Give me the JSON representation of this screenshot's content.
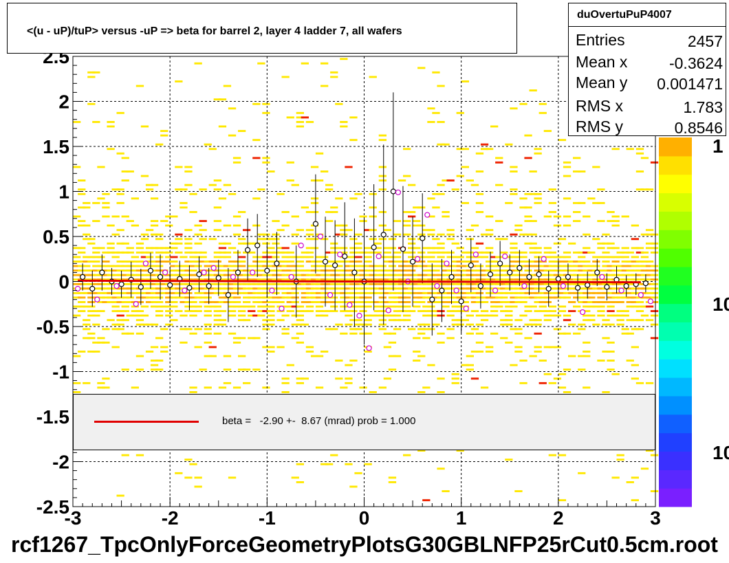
{
  "title": "<(u - uP)/tuP> versus  -uP => beta for barrel 2, layer 4 ladder 7, all wafers",
  "stats": {
    "name": "duOvertuPuP4007",
    "rows": [
      {
        "key": "Entries",
        "value": "2457"
      },
      {
        "key": "Mean x",
        "value": "-0.3624"
      },
      {
        "key": "Mean y",
        "value": "0.001471"
      },
      {
        "key": "RMS x",
        "value": "1.783"
      },
      {
        "key": "RMS y",
        "value": "0.8546"
      }
    ]
  },
  "legend": {
    "text": "beta =   -2.90 +-  8.67 (mrad) prob = 1.000",
    "line_color": "#e00000"
  },
  "footer": "rcf1267_TpcOnlyForceGeometryPlotsG30GBLNFP25rCut0.5cm.root",
  "palette_labels": [
    "1",
    "10",
    "10"
  ],
  "colors": {
    "hist_yellow": "#ffe800",
    "hist_orange": "#ffb000",
    "hist_red": "#ee2200",
    "fit_line": "#e00000",
    "profile_black": "#000000",
    "profile_magenta": "#cc00cc"
  },
  "chart_data": {
    "type": "scatter",
    "xlim": [
      -3,
      3
    ],
    "ylim": [
      -2.5,
      2.5
    ],
    "x_ticks": [
      "-3",
      "-2",
      "-1",
      "0",
      "1",
      "2",
      "3"
    ],
    "y_ticks": [
      "-2.5",
      "-2",
      "-1.5",
      "-1",
      "-0.5",
      "0",
      "0.5",
      "1",
      "1.5",
      "2",
      "2.5"
    ],
    "grid": true,
    "fit": {
      "slope": -0.0029,
      "intercept": 0.0
    },
    "profile_black": [
      {
        "x": -2.9,
        "y": 0.05,
        "e": 0.15
      },
      {
        "x": -2.8,
        "y": -0.08,
        "e": 0.2
      },
      {
        "x": -2.7,
        "y": 0.1,
        "e": 0.2
      },
      {
        "x": -2.6,
        "y": 0.0,
        "e": 0.15
      },
      {
        "x": -2.5,
        "y": -0.03,
        "e": 0.15
      },
      {
        "x": -2.4,
        "y": 0.02,
        "e": 0.2
      },
      {
        "x": -2.3,
        "y": -0.06,
        "e": 0.2
      },
      {
        "x": -2.2,
        "y": 0.12,
        "e": 0.2
      },
      {
        "x": -2.1,
        "y": 0.05,
        "e": 0.25
      },
      {
        "x": -2.0,
        "y": -0.04,
        "e": 0.2
      },
      {
        "x": -1.9,
        "y": 0.03,
        "e": 0.2
      },
      {
        "x": -1.8,
        "y": -0.07,
        "e": 0.25
      },
      {
        "x": -1.7,
        "y": 0.08,
        "e": 0.2
      },
      {
        "x": -1.6,
        "y": -0.05,
        "e": 0.2
      },
      {
        "x": -1.5,
        "y": 0.04,
        "e": 0.2
      },
      {
        "x": -1.4,
        "y": -0.15,
        "e": 0.3
      },
      {
        "x": -1.3,
        "y": 0.1,
        "e": 0.25
      },
      {
        "x": -1.2,
        "y": 0.35,
        "e": 0.35
      },
      {
        "x": -1.1,
        "y": 0.4,
        "e": 0.35
      },
      {
        "x": -1.0,
        "y": 0.12,
        "e": 0.3
      },
      {
        "x": -0.9,
        "y": 0.2,
        "e": 0.35
      },
      {
        "x": -0.7,
        "y": 0.0,
        "e": 0.4
      },
      {
        "x": -0.5,
        "y": 0.64,
        "e": 0.55
      },
      {
        "x": -0.4,
        "y": 0.22,
        "e": 0.5
      },
      {
        "x": -0.3,
        "y": 0.18,
        "e": 0.5
      },
      {
        "x": -0.2,
        "y": 0.28,
        "e": 0.6
      },
      {
        "x": -0.1,
        "y": 0.1,
        "e": 0.6
      },
      {
        "x": 0.0,
        "y": 0.0,
        "e": 0.7
      },
      {
        "x": 0.1,
        "y": 0.38,
        "e": 0.7
      },
      {
        "x": 0.2,
        "y": 0.52,
        "e": 1.0
      },
      {
        "x": 0.3,
        "y": 1.0,
        "e": 1.1
      },
      {
        "x": 0.4,
        "y": 0.36,
        "e": 0.7
      },
      {
        "x": 0.5,
        "y": 0.22,
        "e": 0.5
      },
      {
        "x": 0.6,
        "y": 0.48,
        "e": 0.5
      },
      {
        "x": 0.7,
        "y": -0.2,
        "e": 0.4
      },
      {
        "x": 0.8,
        "y": -0.1,
        "e": 0.35
      },
      {
        "x": 0.9,
        "y": 0.05,
        "e": 0.3
      },
      {
        "x": 1.0,
        "y": -0.22,
        "e": 0.35
      },
      {
        "x": 1.1,
        "y": 0.18,
        "e": 0.3
      },
      {
        "x": 1.2,
        "y": -0.05,
        "e": 0.25
      },
      {
        "x": 1.3,
        "y": 0.08,
        "e": 0.25
      },
      {
        "x": 1.4,
        "y": 0.2,
        "e": 0.25
      },
      {
        "x": 1.5,
        "y": 0.1,
        "e": 0.2
      },
      {
        "x": 1.6,
        "y": 0.15,
        "e": 0.2
      },
      {
        "x": 1.7,
        "y": 0.05,
        "e": 0.2
      },
      {
        "x": 1.8,
        "y": 0.08,
        "e": 0.2
      },
      {
        "x": 1.9,
        "y": -0.08,
        "e": 0.2
      },
      {
        "x": 2.0,
        "y": 0.03,
        "e": 0.2
      },
      {
        "x": 2.1,
        "y": 0.05,
        "e": 0.15
      },
      {
        "x": 2.2,
        "y": -0.07,
        "e": 0.15
      },
      {
        "x": 2.3,
        "y": -0.04,
        "e": 0.15
      },
      {
        "x": 2.4,
        "y": 0.1,
        "e": 0.15
      },
      {
        "x": 2.5,
        "y": -0.06,
        "e": 0.15
      },
      {
        "x": 2.6,
        "y": 0.02,
        "e": 0.15
      },
      {
        "x": 2.7,
        "y": -0.05,
        "e": 0.12
      },
      {
        "x": 2.8,
        "y": -0.03,
        "e": 0.12
      },
      {
        "x": 2.9,
        "y": -0.02,
        "e": 0.1
      }
    ],
    "profile_magenta": [
      {
        "x": -2.95,
        "y": -0.08
      },
      {
        "x": -2.75,
        "y": -0.2
      },
      {
        "x": -2.55,
        "y": -0.05
      },
      {
        "x": -2.35,
        "y": -0.25
      },
      {
        "x": -2.25,
        "y": 0.2
      },
      {
        "x": -2.05,
        "y": 0.1
      },
      {
        "x": -1.85,
        "y": -0.1
      },
      {
        "x": -1.65,
        "y": 0.1
      },
      {
        "x": -1.55,
        "y": 0.15
      },
      {
        "x": -1.35,
        "y": 0.05
      },
      {
        "x": -1.15,
        "y": 0.1
      },
      {
        "x": -0.95,
        "y": -0.1
      },
      {
        "x": -0.85,
        "y": -0.3
      },
      {
        "x": -0.75,
        "y": 0.05
      },
      {
        "x": -0.65,
        "y": 0.4
      },
      {
        "x": -0.45,
        "y": 0.5
      },
      {
        "x": -0.35,
        "y": -0.15
      },
      {
        "x": -0.25,
        "y": 0.3
      },
      {
        "x": -0.15,
        "y": -0.26
      },
      {
        "x": -0.05,
        "y": -0.38
      },
      {
        "x": 0.05,
        "y": -0.74
      },
      {
        "x": 0.15,
        "y": 0.28
      },
      {
        "x": 0.25,
        "y": -0.32
      },
      {
        "x": 0.35,
        "y": 0.99
      },
      {
        "x": 0.45,
        "y": 0.0
      },
      {
        "x": 0.55,
        "y": 0.25
      },
      {
        "x": 0.65,
        "y": 0.74
      },
      {
        "x": 0.75,
        "y": -0.05
      },
      {
        "x": 0.85,
        "y": 0.2
      },
      {
        "x": 0.95,
        "y": -0.1
      },
      {
        "x": 1.05,
        "y": -0.3
      },
      {
        "x": 1.15,
        "y": 0.3
      },
      {
        "x": 1.35,
        "y": -0.1
      },
      {
        "x": 1.45,
        "y": 0.28
      },
      {
        "x": 1.65,
        "y": -0.05
      },
      {
        "x": 1.85,
        "y": 0.25
      },
      {
        "x": 2.05,
        "y": -0.05
      },
      {
        "x": 2.25,
        "y": -0.34
      },
      {
        "x": 2.45,
        "y": 0.05
      },
      {
        "x": 2.65,
        "y": -0.1
      },
      {
        "x": 2.85,
        "y": -0.15
      },
      {
        "x": 2.95,
        "y": -0.22
      }
    ]
  }
}
